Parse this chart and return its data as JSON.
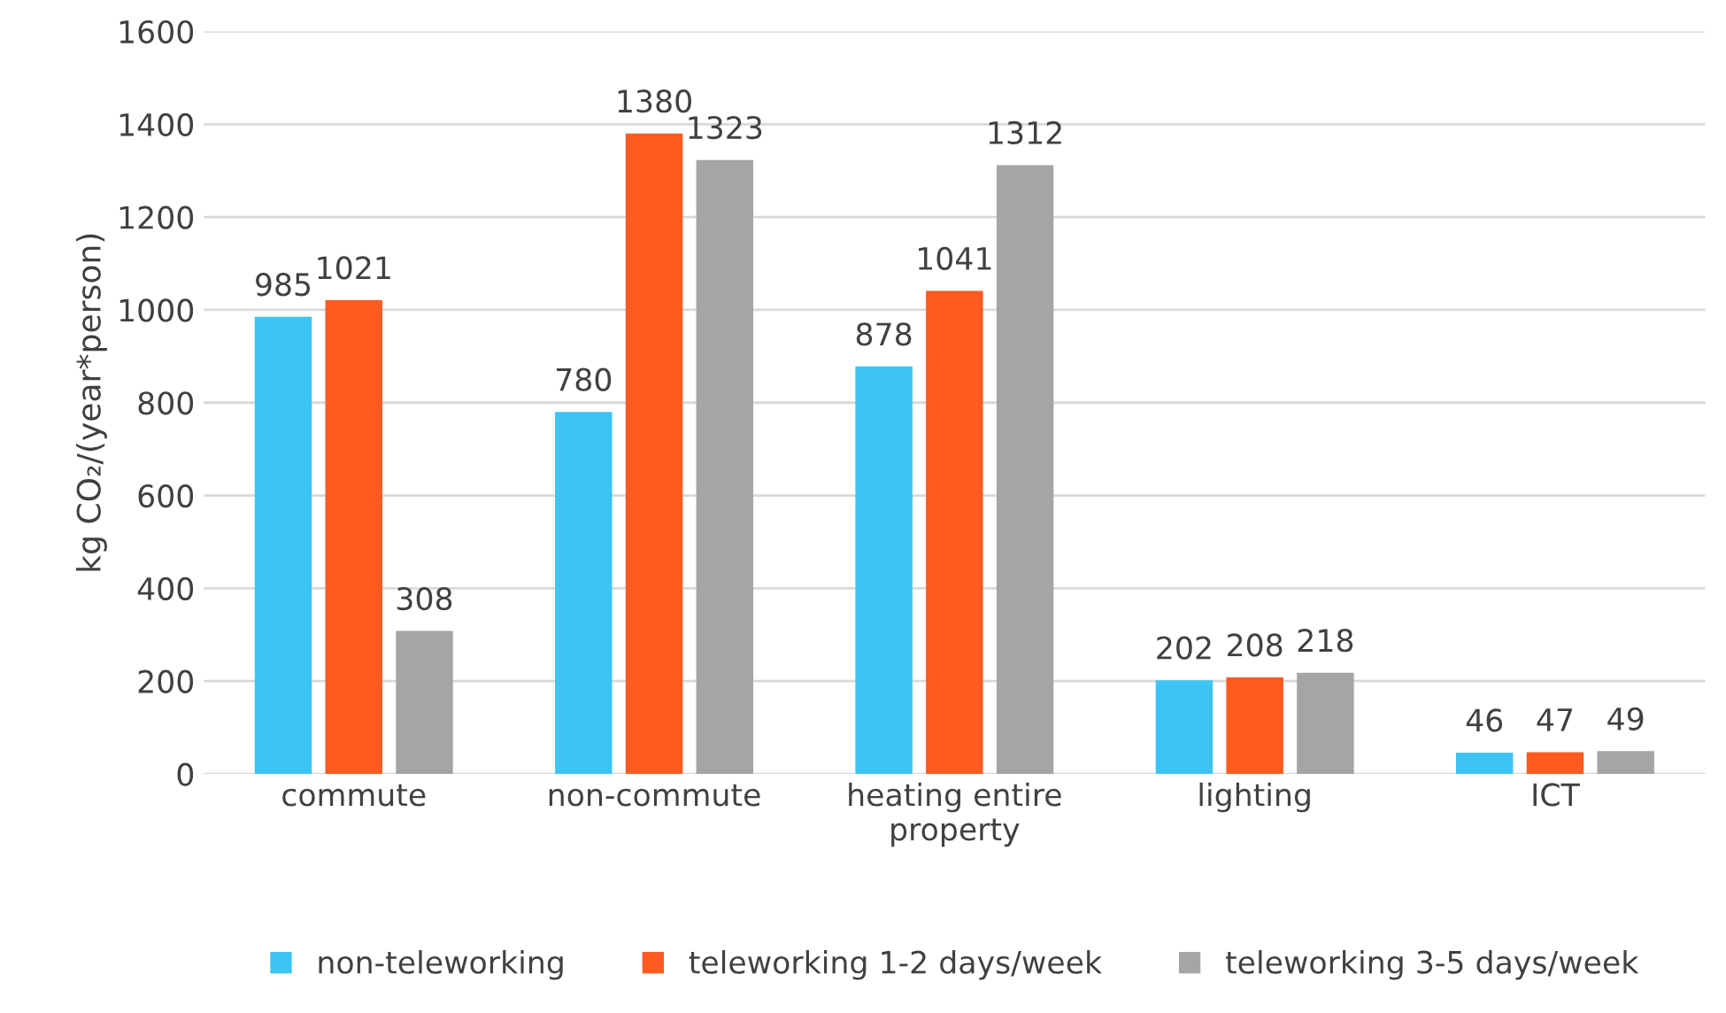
{
  "chart_data": {
    "type": "bar",
    "ylabel": "kg CO₂/(year*person)",
    "categories": [
      "commute",
      "non-commute",
      "heating entire property",
      "lighting",
      "ICT"
    ],
    "series": [
      {
        "name": "non-teleworking",
        "color": "#3cc4f5",
        "values": [
          985,
          780,
          878,
          202,
          46
        ]
      },
      {
        "name": "teleworking 1-2 days/week",
        "color": "#ff5a1f",
        "values": [
          1021,
          1380,
          1041,
          208,
          47
        ]
      },
      {
        "name": "teleworking 3-5 days/week",
        "color": "#a5a5a5",
        "values": [
          308,
          1323,
          1312,
          218,
          49
        ]
      }
    ],
    "ylim": [
      0,
      1600
    ],
    "yticks": [
      0,
      200,
      400,
      600,
      800,
      1000,
      1200,
      1400,
      1600
    ],
    "grid": "y",
    "legend": "bottom",
    "data_labels": true
  }
}
